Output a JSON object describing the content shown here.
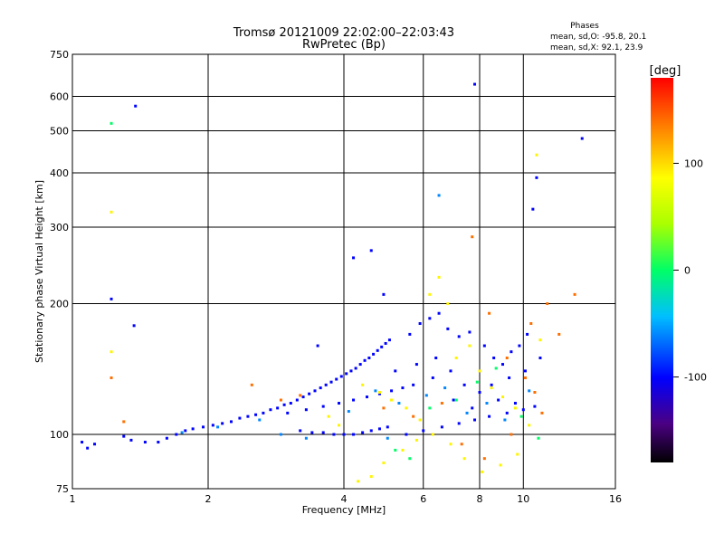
{
  "chart_data": {
    "type": "scatter",
    "title": "Tromsø 20121009 22:02:00–22:03:43",
    "subtitle": "RwPretec (Bp)",
    "xlabel": "Frequency [MHz]",
    "ylabel": "Stationary phase Virtual Height [km]",
    "x_scale": "log",
    "y_scale": "log",
    "xlim": [
      1,
      16
    ],
    "ylim": [
      75,
      750
    ],
    "x_ticks": [
      1,
      2,
      4,
      6,
      8,
      10,
      16
    ],
    "y_ticks": [
      75,
      100,
      200,
      300,
      400,
      500,
      600,
      750
    ],
    "grid": true,
    "phases_box": {
      "title": "Phases",
      "line1": "mean, sd,O: -95.8, 20.1",
      "line2": "mean, sd,X:  92.1, 23.9"
    },
    "colorbar": {
      "label": "[deg]",
      "range": [
        -180,
        180
      ],
      "ticks": [
        100,
        0,
        -100
      ]
    },
    "series": [
      {
        "color_value": -100,
        "points": [
          [
            1.05,
            96
          ],
          [
            1.08,
            93
          ],
          [
            1.12,
            95
          ],
          [
            1.38,
            570
          ],
          [
            1.37,
            178
          ],
          [
            1.3,
            99
          ],
          [
            1.35,
            97
          ],
          [
            1.45,
            96
          ],
          [
            1.55,
            96
          ],
          [
            1.62,
            98
          ],
          [
            1.7,
            100
          ],
          [
            1.78,
            102
          ],
          [
            1.85,
            103
          ],
          [
            1.95,
            104
          ],
          [
            2.05,
            105
          ],
          [
            2.15,
            106
          ],
          [
            2.25,
            107
          ],
          [
            2.35,
            109
          ],
          [
            2.45,
            110
          ],
          [
            2.55,
            111
          ],
          [
            2.65,
            112
          ],
          [
            2.75,
            114
          ],
          [
            2.85,
            115
          ],
          [
            2.95,
            117
          ],
          [
            3.05,
            118
          ],
          [
            3.15,
            120
          ],
          [
            3.25,
            122
          ],
          [
            3.35,
            124
          ],
          [
            3.45,
            126
          ],
          [
            3.55,
            128
          ],
          [
            3.65,
            130
          ],
          [
            3.75,
            132
          ],
          [
            3.85,
            134
          ],
          [
            3.95,
            136
          ],
          [
            4.05,
            138
          ],
          [
            4.15,
            140
          ],
          [
            4.25,
            142
          ],
          [
            4.35,
            145
          ],
          [
            4.45,
            148
          ],
          [
            4.55,
            150
          ],
          [
            4.65,
            153
          ],
          [
            4.75,
            156
          ],
          [
            4.85,
            159
          ],
          [
            4.95,
            162
          ],
          [
            5.05,
            165
          ],
          [
            3.2,
            102
          ],
          [
            3.4,
            101
          ],
          [
            3.6,
            101
          ],
          [
            3.8,
            100
          ],
          [
            4.0,
            100
          ],
          [
            4.2,
            100
          ],
          [
            4.4,
            101
          ],
          [
            4.6,
            102
          ],
          [
            4.8,
            103
          ],
          [
            5.0,
            104
          ],
          [
            3.0,
            112
          ],
          [
            3.3,
            114
          ],
          [
            3.6,
            116
          ],
          [
            3.9,
            118
          ],
          [
            4.2,
            120
          ],
          [
            4.5,
            122
          ],
          [
            4.8,
            124
          ],
          [
            5.1,
            126
          ],
          [
            5.4,
            128
          ],
          [
            5.7,
            130
          ],
          [
            3.5,
            160
          ],
          [
            4.2,
            255
          ],
          [
            4.6,
            265
          ],
          [
            4.9,
            210
          ],
          [
            5.6,
            170
          ],
          [
            5.9,
            180
          ],
          [
            6.2,
            185
          ],
          [
            6.5,
            190
          ],
          [
            6.8,
            175
          ],
          [
            7.2,
            168
          ],
          [
            7.6,
            172
          ],
          [
            7.8,
            640
          ],
          [
            8.2,
            160
          ],
          [
            8.6,
            150
          ],
          [
            9.0,
            145
          ],
          [
            9.4,
            155
          ],
          [
            9.8,
            160
          ],
          [
            10.2,
            170
          ],
          [
            10.7,
            390
          ],
          [
            10.5,
            330
          ],
          [
            13.5,
            480
          ],
          [
            6.4,
            150
          ],
          [
            6.9,
            140
          ],
          [
            7.4,
            130
          ],
          [
            8.0,
            125
          ],
          [
            8.8,
            120
          ],
          [
            9.6,
            118
          ],
          [
            5.5,
            100
          ],
          [
            6.0,
            102
          ],
          [
            6.6,
            104
          ],
          [
            7.2,
            106
          ],
          [
            7.8,
            108
          ],
          [
            8.4,
            110
          ],
          [
            9.2,
            112
          ],
          [
            10.0,
            114
          ],
          [
            10.6,
            116
          ],
          [
            5.2,
            140
          ],
          [
            5.8,
            145
          ],
          [
            6.3,
            135
          ],
          [
            7.0,
            120
          ],
          [
            7.7,
            115
          ],
          [
            8.5,
            130
          ],
          [
            9.3,
            135
          ],
          [
            10.1,
            140
          ],
          [
            10.9,
            150
          ],
          [
            1.22,
            205
          ]
        ]
      },
      {
        "color_value": -60,
        "points": [
          [
            1.75,
            101
          ],
          [
            2.1,
            104
          ],
          [
            2.6,
            108
          ],
          [
            2.9,
            100
          ],
          [
            3.3,
            98
          ],
          [
            4.1,
            113
          ],
          [
            4.7,
            126
          ],
          [
            5.3,
            118
          ],
          [
            6.1,
            123
          ],
          [
            6.7,
            128
          ],
          [
            7.5,
            112
          ],
          [
            8.3,
            118
          ],
          [
            9.1,
            108
          ],
          [
            10.3,
            126
          ],
          [
            6.5,
            355
          ],
          [
            5.0,
            98
          ]
        ]
      },
      {
        "color_value": 0,
        "points": [
          [
            1.22,
            520
          ],
          [
            5.2,
            92
          ],
          [
            5.6,
            88
          ],
          [
            6.2,
            115
          ],
          [
            7.1,
            120
          ],
          [
            7.9,
            132
          ],
          [
            8.7,
            142
          ],
          [
            9.9,
            110
          ],
          [
            10.8,
            98
          ]
        ]
      },
      {
        "color_value": 90,
        "points": [
          [
            4.3,
            78
          ],
          [
            4.6,
            80
          ],
          [
            4.9,
            86
          ],
          [
            5.4,
            92
          ],
          [
            5.8,
            97
          ],
          [
            6.2,
            210
          ],
          [
            6.5,
            230
          ],
          [
            6.8,
            200
          ],
          [
            7.1,
            150
          ],
          [
            7.6,
            160
          ],
          [
            8.0,
            140
          ],
          [
            8.5,
            128
          ],
          [
            9.0,
            122
          ],
          [
            9.6,
            115
          ],
          [
            10.3,
            105
          ],
          [
            10.7,
            440
          ],
          [
            10.9,
            165
          ],
          [
            4.4,
            130
          ],
          [
            4.8,
            125
          ],
          [
            5.1,
            120
          ],
          [
            5.5,
            115
          ],
          [
            5.9,
            108
          ],
          [
            6.3,
            100
          ],
          [
            6.9,
            95
          ],
          [
            7.4,
            88
          ],
          [
            8.1,
            82
          ],
          [
            8.9,
            85
          ],
          [
            9.7,
            90
          ],
          [
            3.7,
            110
          ],
          [
            3.9,
            105
          ],
          [
            1.22,
            325
          ],
          [
            1.22,
            155
          ]
        ]
      },
      {
        "color_value": 140,
        "points": [
          [
            7.7,
            285
          ],
          [
            8.4,
            190
          ],
          [
            9.2,
            150
          ],
          [
            10.1,
            135
          ],
          [
            10.6,
            125
          ],
          [
            11.3,
            200
          ],
          [
            12.0,
            170
          ],
          [
            13.0,
            210
          ],
          [
            4.9,
            115
          ],
          [
            5.7,
            110
          ],
          [
            6.6,
            118
          ],
          [
            7.3,
            95
          ],
          [
            8.2,
            88
          ],
          [
            9.4,
            100
          ],
          [
            10.4,
            180
          ],
          [
            11.0,
            112
          ],
          [
            1.3,
            107
          ],
          [
            1.22,
            135
          ],
          [
            2.5,
            130
          ],
          [
            2.9,
            120
          ],
          [
            3.2,
            123
          ]
        ]
      }
    ]
  }
}
